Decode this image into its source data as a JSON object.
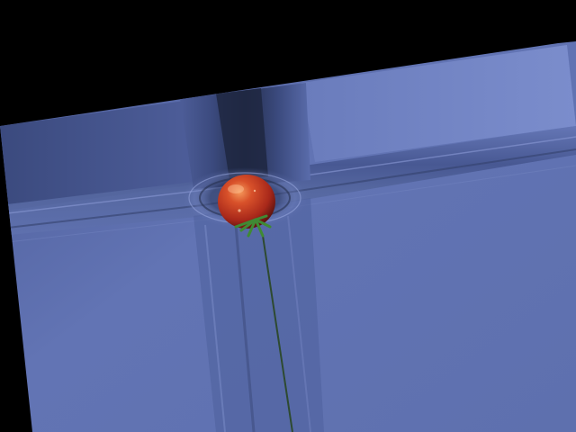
{
  "image": {
    "subject": "tomato-on-blue-tiles",
    "colors": {
      "background": "#000000",
      "plane_light": "#7283c3",
      "plane_mid": "#5d6fae",
      "plane_dark": "#3f4f86",
      "groove": "#2c3860",
      "tomato_red": "#c2341a",
      "tomato_highlight": "#ee8a52",
      "stem_green": "#3f8a34",
      "line_green": "#2e4a30"
    }
  }
}
